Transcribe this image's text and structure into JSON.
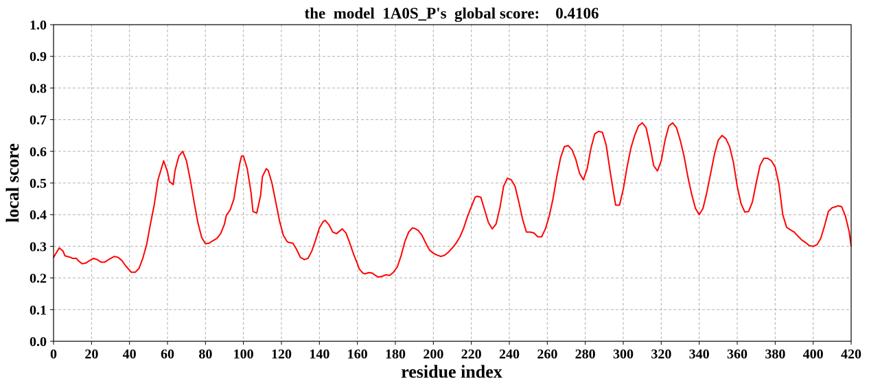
{
  "chart_data": {
    "type": "line",
    "title": "the  model  1A0S_P's  global score:    0.4106",
    "xlabel": "residue index",
    "ylabel": "local score",
    "xlim": [
      0,
      420
    ],
    "ylim": [
      0.0,
      1.0
    ],
    "x_ticks": [
      0,
      20,
      40,
      60,
      80,
      100,
      120,
      140,
      160,
      180,
      200,
      220,
      240,
      260,
      280,
      300,
      320,
      340,
      360,
      380,
      400,
      420
    ],
    "x_tick_labels": [
      "0",
      "20",
      "40",
      "60",
      "80",
      "100",
      "120",
      "140",
      "160",
      "180",
      "200",
      "220",
      "240",
      "260",
      "280",
      "300",
      "320",
      "340",
      "360",
      "380",
      "400",
      "420"
    ],
    "y_ticks": [
      0.0,
      0.1,
      0.2,
      0.3,
      0.4,
      0.5,
      0.6,
      0.7,
      0.8,
      0.9,
      1.0
    ],
    "y_tick_labels": [
      "0.0",
      "0.1",
      "0.2",
      "0.3",
      "0.4",
      "0.5",
      "0.6",
      "0.7",
      "0.8",
      "0.9",
      "1.0"
    ],
    "grid": true,
    "legend": "none",
    "series": [
      {
        "name": "local score",
        "color": "#ff0000",
        "points": [
          [
            0,
            0.265
          ],
          [
            2,
            0.285
          ],
          [
            3,
            0.295
          ],
          [
            5,
            0.285
          ],
          [
            6,
            0.27
          ],
          [
            9,
            0.265
          ],
          [
            10,
            0.262
          ],
          [
            12,
            0.262
          ],
          [
            13,
            0.255
          ],
          [
            15,
            0.245
          ],
          [
            17,
            0.247
          ],
          [
            19,
            0.255
          ],
          [
            21,
            0.262
          ],
          [
            23,
            0.258
          ],
          [
            25,
            0.25
          ],
          [
            27,
            0.25
          ],
          [
            29,
            0.258
          ],
          [
            32,
            0.268
          ],
          [
            34,
            0.265
          ],
          [
            36,
            0.255
          ],
          [
            38,
            0.238
          ],
          [
            41,
            0.218
          ],
          [
            43,
            0.218
          ],
          [
            45,
            0.23
          ],
          [
            47,
            0.262
          ],
          [
            49,
            0.305
          ],
          [
            51,
            0.37
          ],
          [
            53,
            0.43
          ],
          [
            55,
            0.51
          ],
          [
            57,
            0.55
          ],
          [
            58,
            0.57
          ],
          [
            60,
            0.535
          ],
          [
            61,
            0.505
          ],
          [
            63,
            0.495
          ],
          [
            64,
            0.54
          ],
          [
            66,
            0.585
          ],
          [
            68,
            0.6
          ],
          [
            70,
            0.57
          ],
          [
            72,
            0.51
          ],
          [
            74,
            0.44
          ],
          [
            76,
            0.375
          ],
          [
            78,
            0.328
          ],
          [
            80,
            0.308
          ],
          [
            82,
            0.31
          ],
          [
            84,
            0.318
          ],
          [
            86,
            0.325
          ],
          [
            88,
            0.34
          ],
          [
            90,
            0.37
          ],
          [
            91,
            0.398
          ],
          [
            93,
            0.415
          ],
          [
            95,
            0.45
          ],
          [
            96,
            0.49
          ],
          [
            98,
            0.56
          ],
          [
            99,
            0.585
          ],
          [
            100,
            0.585
          ],
          [
            102,
            0.545
          ],
          [
            104,
            0.47
          ],
          [
            105,
            0.41
          ],
          [
            107,
            0.405
          ],
          [
            109,
            0.46
          ],
          [
            110,
            0.52
          ],
          [
            112,
            0.545
          ],
          [
            113,
            0.54
          ],
          [
            115,
            0.5
          ],
          [
            117,
            0.44
          ],
          [
            119,
            0.38
          ],
          [
            121,
            0.335
          ],
          [
            123,
            0.315
          ],
          [
            124,
            0.312
          ],
          [
            126,
            0.31
          ],
          [
            128,
            0.29
          ],
          [
            130,
            0.265
          ],
          [
            132,
            0.258
          ],
          [
            134,
            0.262
          ],
          [
            136,
            0.285
          ],
          [
            138,
            0.32
          ],
          [
            140,
            0.358
          ],
          [
            142,
            0.378
          ],
          [
            143,
            0.382
          ],
          [
            145,
            0.368
          ],
          [
            147,
            0.345
          ],
          [
            149,
            0.34
          ],
          [
            151,
            0.35
          ],
          [
            152,
            0.355
          ],
          [
            154,
            0.342
          ],
          [
            156,
            0.31
          ],
          [
            158,
            0.275
          ],
          [
            160,
            0.245
          ],
          [
            161,
            0.228
          ],
          [
            163,
            0.215
          ],
          [
            164,
            0.213
          ],
          [
            166,
            0.217
          ],
          [
            168,
            0.215
          ],
          [
            169,
            0.21
          ],
          [
            171,
            0.203
          ],
          [
            173,
            0.205
          ],
          [
            175,
            0.21
          ],
          [
            177,
            0.208
          ],
          [
            179,
            0.218
          ],
          [
            181,
            0.235
          ],
          [
            183,
            0.27
          ],
          [
            185,
            0.315
          ],
          [
            187,
            0.345
          ],
          [
            189,
            0.358
          ],
          [
            190,
            0.357
          ],
          [
            192,
            0.35
          ],
          [
            194,
            0.335
          ],
          [
            196,
            0.31
          ],
          [
            198,
            0.288
          ],
          [
            200,
            0.278
          ],
          [
            202,
            0.272
          ],
          [
            204,
            0.268
          ],
          [
            206,
            0.272
          ],
          [
            208,
            0.282
          ],
          [
            210,
            0.295
          ],
          [
            212,
            0.31
          ],
          [
            214,
            0.33
          ],
          [
            216,
            0.358
          ],
          [
            218,
            0.395
          ],
          [
            220,
            0.425
          ],
          [
            222,
            0.455
          ],
          [
            223,
            0.458
          ],
          [
            225,
            0.455
          ],
          [
            227,
            0.415
          ],
          [
            229,
            0.375
          ],
          [
            231,
            0.355
          ],
          [
            233,
            0.37
          ],
          [
            235,
            0.42
          ],
          [
            237,
            0.49
          ],
          [
            239,
            0.515
          ],
          [
            241,
            0.51
          ],
          [
            243,
            0.49
          ],
          [
            245,
            0.44
          ],
          [
            247,
            0.385
          ],
          [
            249,
            0.345
          ],
          [
            251,
            0.345
          ],
          [
            253,
            0.342
          ],
          [
            255,
            0.33
          ],
          [
            257,
            0.33
          ],
          [
            259,
            0.355
          ],
          [
            261,
            0.395
          ],
          [
            263,
            0.45
          ],
          [
            265,
            0.52
          ],
          [
            267,
            0.58
          ],
          [
            269,
            0.615
          ],
          [
            271,
            0.618
          ],
          [
            273,
            0.605
          ],
          [
            275,
            0.575
          ],
          [
            277,
            0.53
          ],
          [
            279,
            0.51
          ],
          [
            281,
            0.545
          ],
          [
            283,
            0.61
          ],
          [
            285,
            0.655
          ],
          [
            287,
            0.663
          ],
          [
            289,
            0.66
          ],
          [
            291,
            0.62
          ],
          [
            293,
            0.54
          ],
          [
            295,
            0.465
          ],
          [
            296,
            0.43
          ],
          [
            298,
            0.43
          ],
          [
            300,
            0.48
          ],
          [
            302,
            0.55
          ],
          [
            304,
            0.61
          ],
          [
            306,
            0.65
          ],
          [
            308,
            0.68
          ],
          [
            310,
            0.69
          ],
          [
            312,
            0.675
          ],
          [
            314,
            0.62
          ],
          [
            316,
            0.555
          ],
          [
            318,
            0.538
          ],
          [
            320,
            0.57
          ],
          [
            322,
            0.635
          ],
          [
            324,
            0.68
          ],
          [
            326,
            0.69
          ],
          [
            328,
            0.675
          ],
          [
            330,
            0.635
          ],
          [
            332,
            0.585
          ],
          [
            334,
            0.52
          ],
          [
            336,
            0.465
          ],
          [
            338,
            0.42
          ],
          [
            340,
            0.4
          ],
          [
            342,
            0.42
          ],
          [
            344,
            0.47
          ],
          [
            346,
            0.53
          ],
          [
            348,
            0.59
          ],
          [
            350,
            0.635
          ],
          [
            352,
            0.65
          ],
          [
            354,
            0.64
          ],
          [
            356,
            0.615
          ],
          [
            358,
            0.565
          ],
          [
            360,
            0.49
          ],
          [
            362,
            0.435
          ],
          [
            364,
            0.408
          ],
          [
            366,
            0.41
          ],
          [
            368,
            0.44
          ],
          [
            370,
            0.5
          ],
          [
            372,
            0.555
          ],
          [
            374,
            0.578
          ],
          [
            376,
            0.578
          ],
          [
            378,
            0.57
          ],
          [
            380,
            0.55
          ],
          [
            382,
            0.495
          ],
          [
            384,
            0.4
          ],
          [
            386,
            0.36
          ],
          [
            388,
            0.352
          ],
          [
            390,
            0.345
          ],
          [
            392,
            0.332
          ],
          [
            394,
            0.32
          ],
          [
            396,
            0.312
          ],
          [
            398,
            0.302
          ],
          [
            400,
            0.3
          ],
          [
            402,
            0.305
          ],
          [
            404,
            0.325
          ],
          [
            406,
            0.365
          ],
          [
            408,
            0.41
          ],
          [
            410,
            0.422
          ],
          [
            412,
            0.425
          ],
          [
            413,
            0.428
          ],
          [
            415,
            0.425
          ],
          [
            417,
            0.395
          ],
          [
            419,
            0.345
          ],
          [
            420,
            0.3
          ]
        ]
      }
    ]
  }
}
